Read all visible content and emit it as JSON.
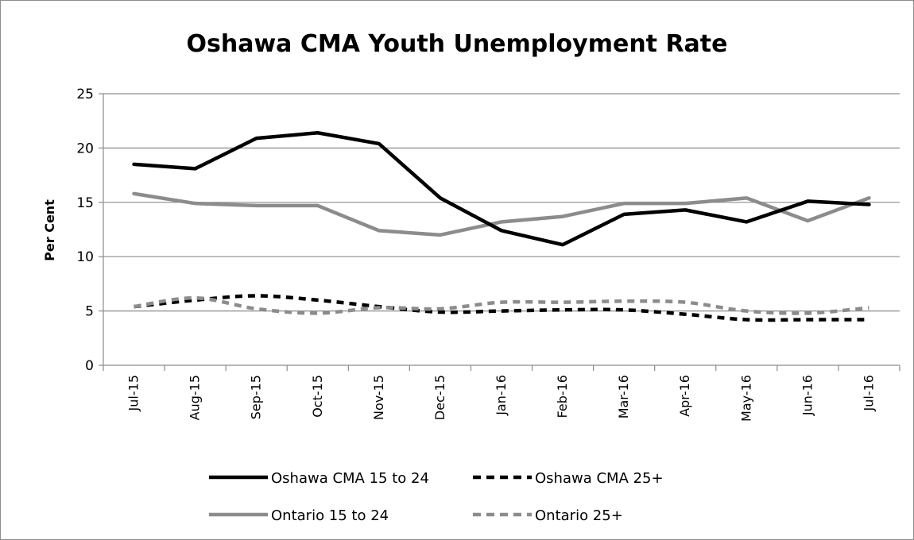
{
  "chart_data": {
    "type": "line",
    "title": "Oshawa CMA Youth Unemployment Rate",
    "xlabel": "",
    "ylabel": "Per Cent",
    "ylim": [
      0,
      25
    ],
    "yticks": [
      0,
      5,
      10,
      15,
      20,
      25
    ],
    "grid": true,
    "legend_position": "bottom",
    "categories": [
      "Jul-15",
      "Aug-15",
      "Sep-15",
      "Oct-15",
      "Nov-15",
      "Dec-15",
      "Jan-16",
      "Feb-16",
      "Mar-16",
      "Apr-16",
      "May-16",
      "Jun-16",
      "Jul-16"
    ],
    "series": [
      {
        "name": "Oshawa CMA 15 to 24",
        "color": "#000000",
        "dash": false,
        "values": [
          18.5,
          18.1,
          20.9,
          21.4,
          20.4,
          15.4,
          12.4,
          11.1,
          13.9,
          14.3,
          13.2,
          15.1,
          14.8
        ]
      },
      {
        "name": "Oshawa CMA 25+",
        "color": "#000000",
        "dash": true,
        "values": [
          5.4,
          6.0,
          6.4,
          6.0,
          5.4,
          4.9,
          5.0,
          5.1,
          5.1,
          4.7,
          4.2,
          4.2,
          4.2
        ]
      },
      {
        "name": "Ontario 15 to 24",
        "color": "#8c8c8c",
        "dash": false,
        "values": [
          15.8,
          14.9,
          14.7,
          14.7,
          12.4,
          12.0,
          13.2,
          13.7,
          14.9,
          14.9,
          15.4,
          13.3,
          15.4
        ]
      },
      {
        "name": "Ontario 25+",
        "color": "#8c8c8c",
        "dash": true,
        "values": [
          5.4,
          6.2,
          5.2,
          4.8,
          5.3,
          5.2,
          5.8,
          5.8,
          5.9,
          5.8,
          5.0,
          4.8,
          5.3
        ]
      }
    ]
  }
}
